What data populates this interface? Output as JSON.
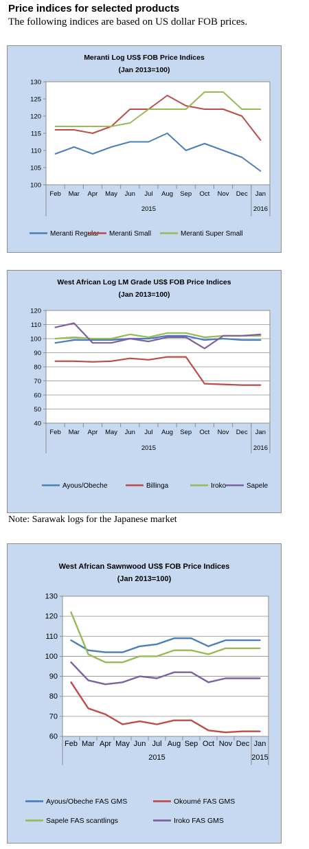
{
  "page": {
    "heading": "Price indices for selected products",
    "subheading": "The following indices are based on US dollar FOB prices.",
    "note": "Note: Sarawak logs for the Japanese market"
  },
  "chart_data": [
    {
      "type": "line",
      "title": "Meranti Log US$ FOB Price Indices",
      "subtitle": "(Jan 2013=100)",
      "categories": [
        "Feb",
        "Mar",
        "Apr",
        "May",
        "Jun",
        "Jul",
        "Aug",
        "Sep",
        "Oct",
        "Nov",
        "Dec",
        "Jan"
      ],
      "year_labels": [
        "2015",
        "2016"
      ],
      "ylim": [
        100,
        130
      ],
      "yticks": [
        100,
        105,
        110,
        115,
        120,
        125,
        130
      ],
      "grid": false,
      "legend_position": "bottom",
      "series": [
        {
          "name": "Meranti Regular",
          "color": "#4a7ebb",
          "values": [
            109,
            111,
            109,
            111,
            112.5,
            112.5,
            115,
            110,
            112,
            110,
            108,
            104
          ]
        },
        {
          "name": "Meranti Small",
          "color": "#be4b48",
          "values": [
            116,
            116,
            115,
            117,
            122,
            122,
            126,
            123,
            122,
            122,
            120,
            113
          ]
        },
        {
          "name": "Meranti Super Small",
          "color": "#98b954",
          "values": [
            117,
            117,
            117,
            117,
            118,
            122,
            122,
            122,
            127,
            127,
            122,
            122
          ]
        }
      ]
    },
    {
      "type": "line",
      "title": "West African Log LM Grade US$ FOB Price Indices",
      "subtitle": "(Jan 2013=100)",
      "categories": [
        "Feb",
        "Mar",
        "Apr",
        "May",
        "Jun",
        "Jul",
        "Aug",
        "Sep",
        "Oct",
        "Nov",
        "Dec",
        "Jan"
      ],
      "year_labels": [
        "2015",
        "2016"
      ],
      "ylim": [
        40,
        120
      ],
      "yticks": [
        40,
        50,
        60,
        70,
        80,
        90,
        100,
        110,
        120
      ],
      "grid": true,
      "legend_position": "bottom",
      "series": [
        {
          "name": "Ayous/Obeche",
          "color": "#4a7ebb",
          "values": [
            97,
            99,
            99,
            99,
            100,
            100,
            102,
            102,
            99,
            100,
            99,
            99
          ]
        },
        {
          "name": "Billinga",
          "color": "#be4b48",
          "values": [
            84,
            84,
            83.5,
            84,
            86,
            85,
            87,
            87,
            68,
            67.5,
            67,
            67
          ]
        },
        {
          "name": "Iroko",
          "color": "#98b954",
          "values": [
            100,
            101,
            100,
            100,
            103,
            101,
            104,
            104,
            101,
            102,
            102,
            102
          ]
        },
        {
          "name": "Sapele",
          "color": "#7d60a0",
          "values": [
            108,
            111,
            97,
            97,
            100,
            98,
            101,
            101,
            93,
            102,
            102,
            103
          ]
        }
      ]
    },
    {
      "type": "line",
      "title": "West African Sawnwood US$ FOB Price Indices",
      "subtitle": "(Jan 2013=100)",
      "categories": [
        "Feb",
        "Mar",
        "Apr",
        "May",
        "Jun",
        "Jul",
        "Aug",
        "Sep",
        "Oct",
        "Nov",
        "Dec",
        "Jan"
      ],
      "year_labels": [
        "2015",
        "2015"
      ],
      "ylim": [
        60,
        130
      ],
      "yticks": [
        60,
        70,
        80,
        90,
        100,
        110,
        120,
        130
      ],
      "grid": true,
      "legend_position": "bottom",
      "series": [
        {
          "name": "Ayous/Obeche  FAS GMS",
          "color": "#4a7ebb",
          "values": [
            108,
            103,
            102,
            102,
            105,
            106,
            109,
            109,
            105,
            108,
            108,
            108
          ]
        },
        {
          "name": "Okoumé  FAS GMS",
          "color": "#be4b48",
          "values": [
            87,
            74,
            71,
            66,
            67.5,
            66,
            68,
            68,
            63,
            62,
            62.5,
            62.5
          ]
        },
        {
          "name": "Sapele FAS scantlings",
          "color": "#98b954",
          "values": [
            122,
            101,
            97,
            97,
            100,
            100,
            103,
            103,
            101,
            104,
            104,
            104
          ]
        },
        {
          "name": "Iroko FAS GMS",
          "color": "#7d60a0",
          "values": [
            97,
            88,
            86,
            87,
            90,
            89,
            92,
            92,
            87,
            89,
            89,
            89
          ]
        }
      ]
    }
  ]
}
